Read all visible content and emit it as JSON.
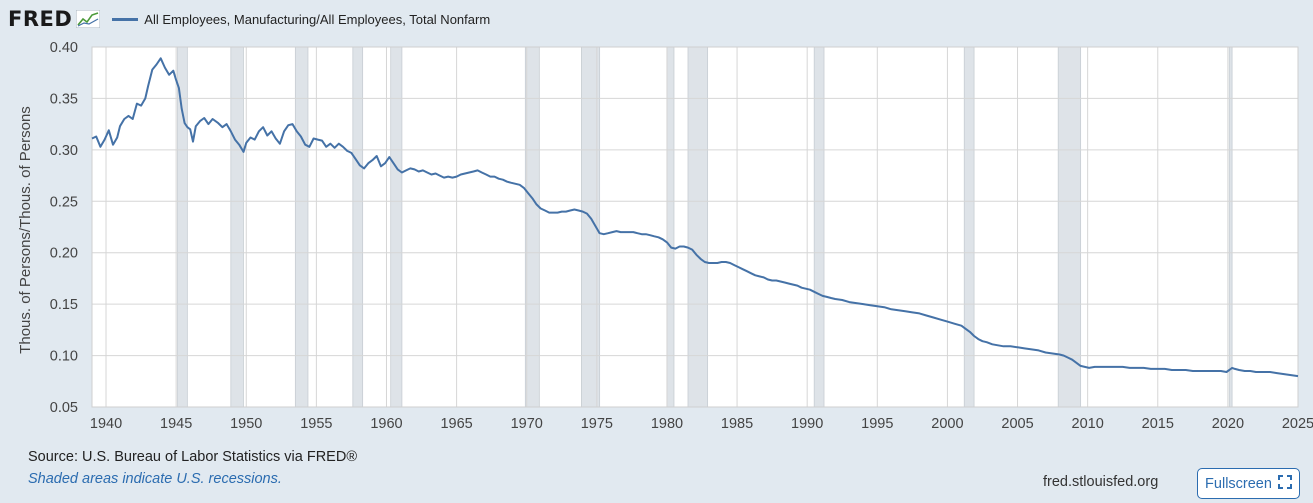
{
  "header": {
    "logo": "FRED",
    "legend_label": "All Employees, Manufacturing/All Employees, Total Nonfarm"
  },
  "footer": {
    "source": "Source: U.S. Bureau of Labor Statistics via FRED®",
    "note": "Shaded areas indicate U.S. recessions.",
    "site": "fred.stlouisfed.org",
    "fullscreen_label": "Fullscreen"
  },
  "colors": {
    "series": "#4572a7",
    "recession": "#dee3e8",
    "grid": "#d6d6d6",
    "background": "#e1e9f0",
    "link": "#2b6cb0"
  },
  "chart_data": {
    "type": "line",
    "ylabel": "Thous. of Persons/Thous. of Persons",
    "xlim": [
      1939,
      2025
    ],
    "ylim": [
      0.05,
      0.4
    ],
    "yticks": [
      "0.05",
      "0.10",
      "0.15",
      "0.20",
      "0.25",
      "0.30",
      "0.35",
      "0.40"
    ],
    "xticks": [
      "1940",
      "1945",
      "1950",
      "1955",
      "1960",
      "1965",
      "1970",
      "1975",
      "1980",
      "1985",
      "1990",
      "1995",
      "2000",
      "2005",
      "2010",
      "2015",
      "2020",
      "2025"
    ],
    "grid": true,
    "recessions": [
      [
        1945.1,
        1945.8
      ],
      [
        1948.9,
        1949.8
      ],
      [
        1953.5,
        1954.4
      ],
      [
        1957.6,
        1958.3
      ],
      [
        1960.3,
        1961.1
      ],
      [
        1969.9,
        1970.9
      ],
      [
        1973.9,
        1975.2
      ],
      [
        1980.0,
        1980.5
      ],
      [
        1981.5,
        1982.9
      ],
      [
        1990.5,
        1991.2
      ],
      [
        2001.2,
        2001.9
      ],
      [
        2007.9,
        2009.5
      ],
      [
        2020.1,
        2020.3
      ]
    ],
    "series": [
      {
        "name": "All Employees, Manufacturing/All Employees, Total Nonfarm",
        "points": [
          [
            1939.0,
            0.311
          ],
          [
            1939.3,
            0.313
          ],
          [
            1939.6,
            0.303
          ],
          [
            1939.9,
            0.31
          ],
          [
            1940.2,
            0.319
          ],
          [
            1940.5,
            0.305
          ],
          [
            1940.8,
            0.312
          ],
          [
            1941.0,
            0.323
          ],
          [
            1941.3,
            0.33
          ],
          [
            1941.6,
            0.333
          ],
          [
            1941.9,
            0.33
          ],
          [
            1942.2,
            0.345
          ],
          [
            1942.5,
            0.343
          ],
          [
            1942.8,
            0.35
          ],
          [
            1943.0,
            0.362
          ],
          [
            1943.3,
            0.378
          ],
          [
            1943.6,
            0.383
          ],
          [
            1943.9,
            0.389
          ],
          [
            1944.2,
            0.38
          ],
          [
            1944.5,
            0.373
          ],
          [
            1944.8,
            0.377
          ],
          [
            1945.0,
            0.368
          ],
          [
            1945.2,
            0.36
          ],
          [
            1945.4,
            0.34
          ],
          [
            1945.6,
            0.326
          ],
          [
            1945.8,
            0.322
          ],
          [
            1946.0,
            0.32
          ],
          [
            1946.2,
            0.308
          ],
          [
            1946.4,
            0.323
          ],
          [
            1946.7,
            0.328
          ],
          [
            1947.0,
            0.331
          ],
          [
            1947.3,
            0.325
          ],
          [
            1947.6,
            0.33
          ],
          [
            1948.0,
            0.326
          ],
          [
            1948.3,
            0.322
          ],
          [
            1948.6,
            0.325
          ],
          [
            1948.9,
            0.318
          ],
          [
            1949.2,
            0.31
          ],
          [
            1949.5,
            0.305
          ],
          [
            1949.8,
            0.298
          ],
          [
            1950.0,
            0.307
          ],
          [
            1950.3,
            0.312
          ],
          [
            1950.6,
            0.31
          ],
          [
            1950.9,
            0.318
          ],
          [
            1951.2,
            0.322
          ],
          [
            1951.5,
            0.314
          ],
          [
            1951.8,
            0.318
          ],
          [
            1952.1,
            0.311
          ],
          [
            1952.4,
            0.306
          ],
          [
            1952.7,
            0.318
          ],
          [
            1953.0,
            0.324
          ],
          [
            1953.3,
            0.325
          ],
          [
            1953.6,
            0.318
          ],
          [
            1953.9,
            0.313
          ],
          [
            1954.2,
            0.305
          ],
          [
            1954.5,
            0.303
          ],
          [
            1954.8,
            0.311
          ],
          [
            1955.1,
            0.31
          ],
          [
            1955.4,
            0.309
          ],
          [
            1955.7,
            0.303
          ],
          [
            1956.0,
            0.306
          ],
          [
            1956.3,
            0.302
          ],
          [
            1956.6,
            0.306
          ],
          [
            1956.9,
            0.303
          ],
          [
            1957.2,
            0.299
          ],
          [
            1957.5,
            0.297
          ],
          [
            1957.8,
            0.291
          ],
          [
            1958.1,
            0.285
          ],
          [
            1958.4,
            0.282
          ],
          [
            1958.7,
            0.287
          ],
          [
            1959.0,
            0.29
          ],
          [
            1959.3,
            0.294
          ],
          [
            1959.6,
            0.284
          ],
          [
            1959.9,
            0.287
          ],
          [
            1960.2,
            0.293
          ],
          [
            1960.5,
            0.287
          ],
          [
            1960.8,
            0.281
          ],
          [
            1961.1,
            0.278
          ],
          [
            1961.4,
            0.28
          ],
          [
            1961.7,
            0.282
          ],
          [
            1962.0,
            0.281
          ],
          [
            1962.3,
            0.279
          ],
          [
            1962.6,
            0.28
          ],
          [
            1962.9,
            0.278
          ],
          [
            1963.2,
            0.276
          ],
          [
            1963.5,
            0.277
          ],
          [
            1963.8,
            0.275
          ],
          [
            1964.1,
            0.273
          ],
          [
            1964.4,
            0.274
          ],
          [
            1964.7,
            0.273
          ],
          [
            1965.0,
            0.274
          ],
          [
            1965.3,
            0.276
          ],
          [
            1965.6,
            0.277
          ],
          [
            1965.9,
            0.278
          ],
          [
            1966.2,
            0.279
          ],
          [
            1966.5,
            0.28
          ],
          [
            1966.8,
            0.278
          ],
          [
            1967.1,
            0.276
          ],
          [
            1967.4,
            0.274
          ],
          [
            1967.7,
            0.274
          ],
          [
            1968.0,
            0.272
          ],
          [
            1968.3,
            0.271
          ],
          [
            1968.6,
            0.269
          ],
          [
            1968.9,
            0.268
          ],
          [
            1969.2,
            0.267
          ],
          [
            1969.5,
            0.266
          ],
          [
            1969.8,
            0.263
          ],
          [
            1970.1,
            0.258
          ],
          [
            1970.4,
            0.253
          ],
          [
            1970.7,
            0.247
          ],
          [
            1971.0,
            0.243
          ],
          [
            1971.3,
            0.241
          ],
          [
            1971.6,
            0.239
          ],
          [
            1971.9,
            0.239
          ],
          [
            1972.2,
            0.239
          ],
          [
            1972.5,
            0.24
          ],
          [
            1972.8,
            0.24
          ],
          [
            1973.1,
            0.241
          ],
          [
            1973.4,
            0.242
          ],
          [
            1973.7,
            0.241
          ],
          [
            1974.0,
            0.24
          ],
          [
            1974.3,
            0.238
          ],
          [
            1974.6,
            0.233
          ],
          [
            1974.9,
            0.226
          ],
          [
            1975.2,
            0.219
          ],
          [
            1975.5,
            0.218
          ],
          [
            1975.8,
            0.219
          ],
          [
            1976.1,
            0.22
          ],
          [
            1976.4,
            0.221
          ],
          [
            1976.7,
            0.22
          ],
          [
            1977.0,
            0.22
          ],
          [
            1977.3,
            0.22
          ],
          [
            1977.6,
            0.22
          ],
          [
            1977.9,
            0.219
          ],
          [
            1978.2,
            0.218
          ],
          [
            1978.5,
            0.218
          ],
          [
            1978.8,
            0.217
          ],
          [
            1979.1,
            0.216
          ],
          [
            1979.4,
            0.215
          ],
          [
            1979.7,
            0.213
          ],
          [
            1980.0,
            0.21
          ],
          [
            1980.3,
            0.205
          ],
          [
            1980.6,
            0.204
          ],
          [
            1980.9,
            0.206
          ],
          [
            1981.2,
            0.206
          ],
          [
            1981.5,
            0.205
          ],
          [
            1981.8,
            0.203
          ],
          [
            1982.1,
            0.198
          ],
          [
            1982.4,
            0.194
          ],
          [
            1982.7,
            0.191
          ],
          [
            1983.0,
            0.19
          ],
          [
            1983.3,
            0.19
          ],
          [
            1983.6,
            0.19
          ],
          [
            1983.9,
            0.191
          ],
          [
            1984.2,
            0.191
          ],
          [
            1984.5,
            0.19
          ],
          [
            1984.8,
            0.188
          ],
          [
            1985.1,
            0.186
          ],
          [
            1985.4,
            0.184
          ],
          [
            1985.7,
            0.182
          ],
          [
            1986.0,
            0.18
          ],
          [
            1986.3,
            0.178
          ],
          [
            1986.6,
            0.177
          ],
          [
            1986.9,
            0.176
          ],
          [
            1987.2,
            0.174
          ],
          [
            1987.5,
            0.173
          ],
          [
            1987.8,
            0.173
          ],
          [
            1988.1,
            0.172
          ],
          [
            1988.4,
            0.171
          ],
          [
            1988.7,
            0.17
          ],
          [
            1989.0,
            0.169
          ],
          [
            1989.3,
            0.168
          ],
          [
            1989.6,
            0.166
          ],
          [
            1989.9,
            0.165
          ],
          [
            1990.2,
            0.164
          ],
          [
            1990.5,
            0.162
          ],
          [
            1990.8,
            0.16
          ],
          [
            1991.1,
            0.158
          ],
          [
            1991.4,
            0.157
          ],
          [
            1991.7,
            0.156
          ],
          [
            1992.0,
            0.155
          ],
          [
            1992.5,
            0.154
          ],
          [
            1993.0,
            0.152
          ],
          [
            1993.5,
            0.151
          ],
          [
            1994.0,
            0.15
          ],
          [
            1994.5,
            0.149
          ],
          [
            1995.0,
            0.148
          ],
          [
            1995.5,
            0.147
          ],
          [
            1996.0,
            0.145
          ],
          [
            1996.5,
            0.144
          ],
          [
            1997.0,
            0.143
          ],
          [
            1997.5,
            0.142
          ],
          [
            1998.0,
            0.141
          ],
          [
            1998.5,
            0.139
          ],
          [
            1999.0,
            0.137
          ],
          [
            1999.5,
            0.135
          ],
          [
            2000.0,
            0.133
          ],
          [
            2000.5,
            0.131
          ],
          [
            2001.0,
            0.129
          ],
          [
            2001.3,
            0.126
          ],
          [
            2001.6,
            0.123
          ],
          [
            2001.9,
            0.119
          ],
          [
            2002.2,
            0.116
          ],
          [
            2002.5,
            0.114
          ],
          [
            2002.8,
            0.113
          ],
          [
            2003.2,
            0.111
          ],
          [
            2003.6,
            0.11
          ],
          [
            2004.0,
            0.109
          ],
          [
            2004.5,
            0.109
          ],
          [
            2005.0,
            0.108
          ],
          [
            2005.5,
            0.107
          ],
          [
            2006.0,
            0.106
          ],
          [
            2006.5,
            0.105
          ],
          [
            2007.0,
            0.103
          ],
          [
            2007.5,
            0.102
          ],
          [
            2008.0,
            0.101
          ],
          [
            2008.3,
            0.1
          ],
          [
            2008.6,
            0.098
          ],
          [
            2008.9,
            0.096
          ],
          [
            2009.2,
            0.093
          ],
          [
            2009.5,
            0.09
          ],
          [
            2009.8,
            0.089
          ],
          [
            2010.1,
            0.088
          ],
          [
            2010.5,
            0.089
          ],
          [
            2011.0,
            0.089
          ],
          [
            2011.5,
            0.089
          ],
          [
            2012.0,
            0.089
          ],
          [
            2012.5,
            0.089
          ],
          [
            2013.0,
            0.088
          ],
          [
            2013.5,
            0.088
          ],
          [
            2014.0,
            0.088
          ],
          [
            2014.5,
            0.087
          ],
          [
            2015.0,
            0.087
          ],
          [
            2015.5,
            0.087
          ],
          [
            2016.0,
            0.086
          ],
          [
            2016.5,
            0.086
          ],
          [
            2017.0,
            0.086
          ],
          [
            2017.5,
            0.085
          ],
          [
            2018.0,
            0.085
          ],
          [
            2018.5,
            0.085
          ],
          [
            2019.0,
            0.085
          ],
          [
            2019.5,
            0.085
          ],
          [
            2019.9,
            0.084
          ],
          [
            2020.1,
            0.086
          ],
          [
            2020.3,
            0.088
          ],
          [
            2020.5,
            0.087
          ],
          [
            2020.8,
            0.086
          ],
          [
            2021.2,
            0.085
          ],
          [
            2021.6,
            0.085
          ],
          [
            2022.0,
            0.084
          ],
          [
            2022.5,
            0.084
          ],
          [
            2023.0,
            0.084
          ],
          [
            2023.5,
            0.083
          ],
          [
            2024.0,
            0.082
          ],
          [
            2024.5,
            0.081
          ],
          [
            2025.0,
            0.08
          ]
        ]
      }
    ]
  }
}
